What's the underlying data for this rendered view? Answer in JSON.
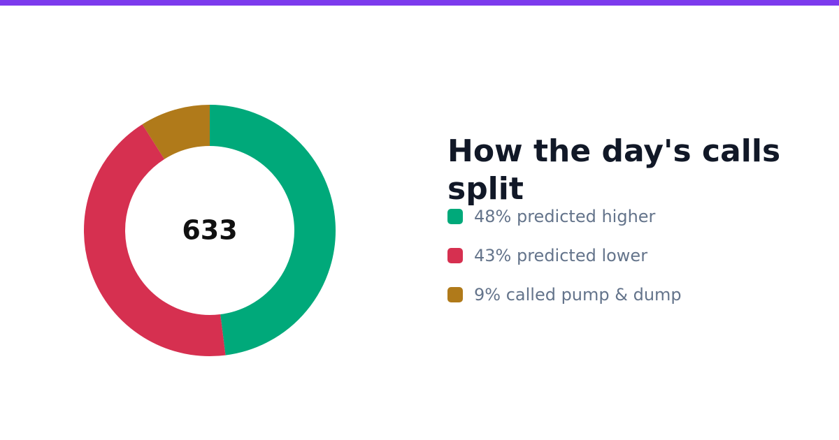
{
  "accent_color": "#7c3aed",
  "title": "How the day's calls split",
  "chart_data": {
    "type": "pie",
    "variant": "donut",
    "title": "How the day's calls split",
    "center_label": "633",
    "series": [
      {
        "name": "48% predicted higher",
        "value": 48,
        "color": "#00a97a"
      },
      {
        "name": "43% predicted lower",
        "value": 43,
        "color": "#d63050"
      },
      {
        "name": "9% called pump & dump",
        "value": 9,
        "color": "#b07a1a"
      }
    ],
    "legend_position": "right"
  }
}
